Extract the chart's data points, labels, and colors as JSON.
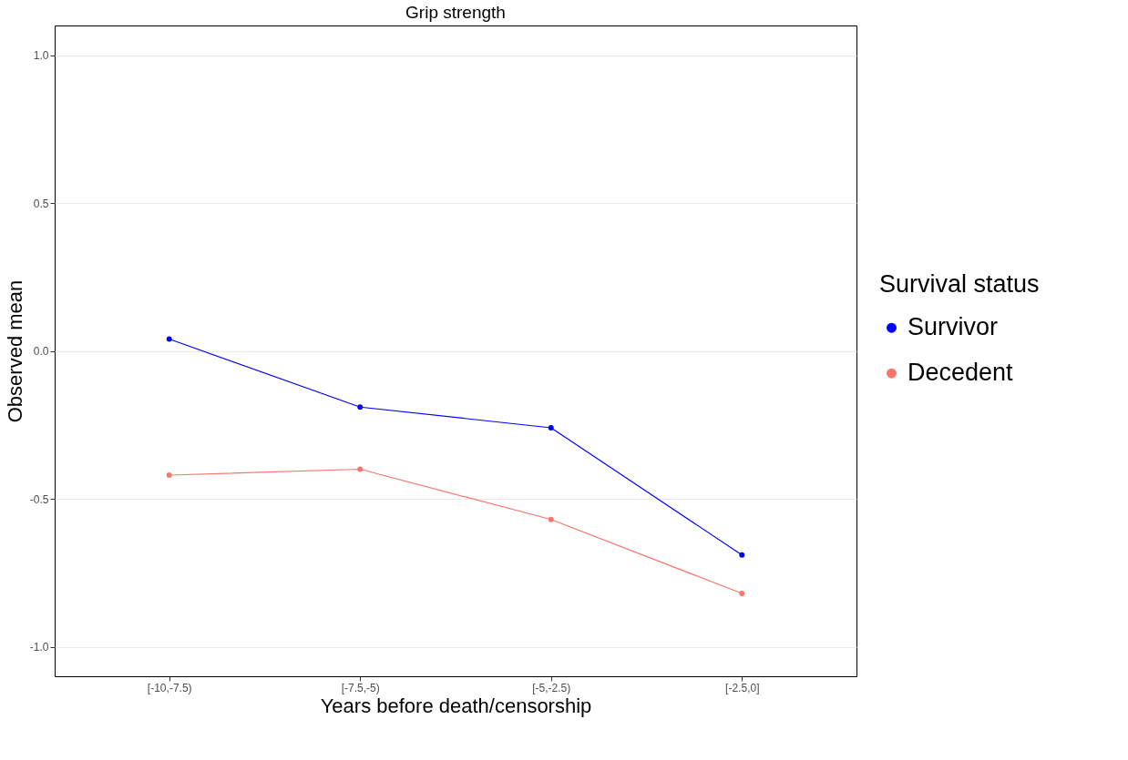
{
  "chart_data": {
    "type": "line",
    "title": "Grip strength",
    "xlabel": "Years before death/censorship",
    "ylabel": "Observed mean",
    "legend_title": "Survival status",
    "categories": [
      "[-10,-7.5)",
      "[-7.5,-5)",
      "[-5,-2.5)",
      "[-2.5,0]"
    ],
    "series": [
      {
        "name": "Survivor",
        "color": "#0000ff",
        "values": [
          0.04,
          -0.19,
          -0.26,
          -0.69
        ]
      },
      {
        "name": "Decedent",
        "color": "#f8766d",
        "values": [
          -0.42,
          -0.4,
          -0.57,
          -0.82
        ]
      }
    ],
    "ylim": [
      -1.1,
      1.1
    ],
    "yticks": [
      {
        "value": -1,
        "label": "-1.0"
      },
      {
        "value": -0.5,
        "label": "-0.5"
      },
      {
        "value": 0,
        "label": "0.0"
      },
      {
        "value": 0.5,
        "label": "0.5"
      },
      {
        "value": 1,
        "label": "1.0"
      }
    ],
    "grid": "y",
    "legend": "right",
    "marker": "circle",
    "line_style": "solid"
  }
}
